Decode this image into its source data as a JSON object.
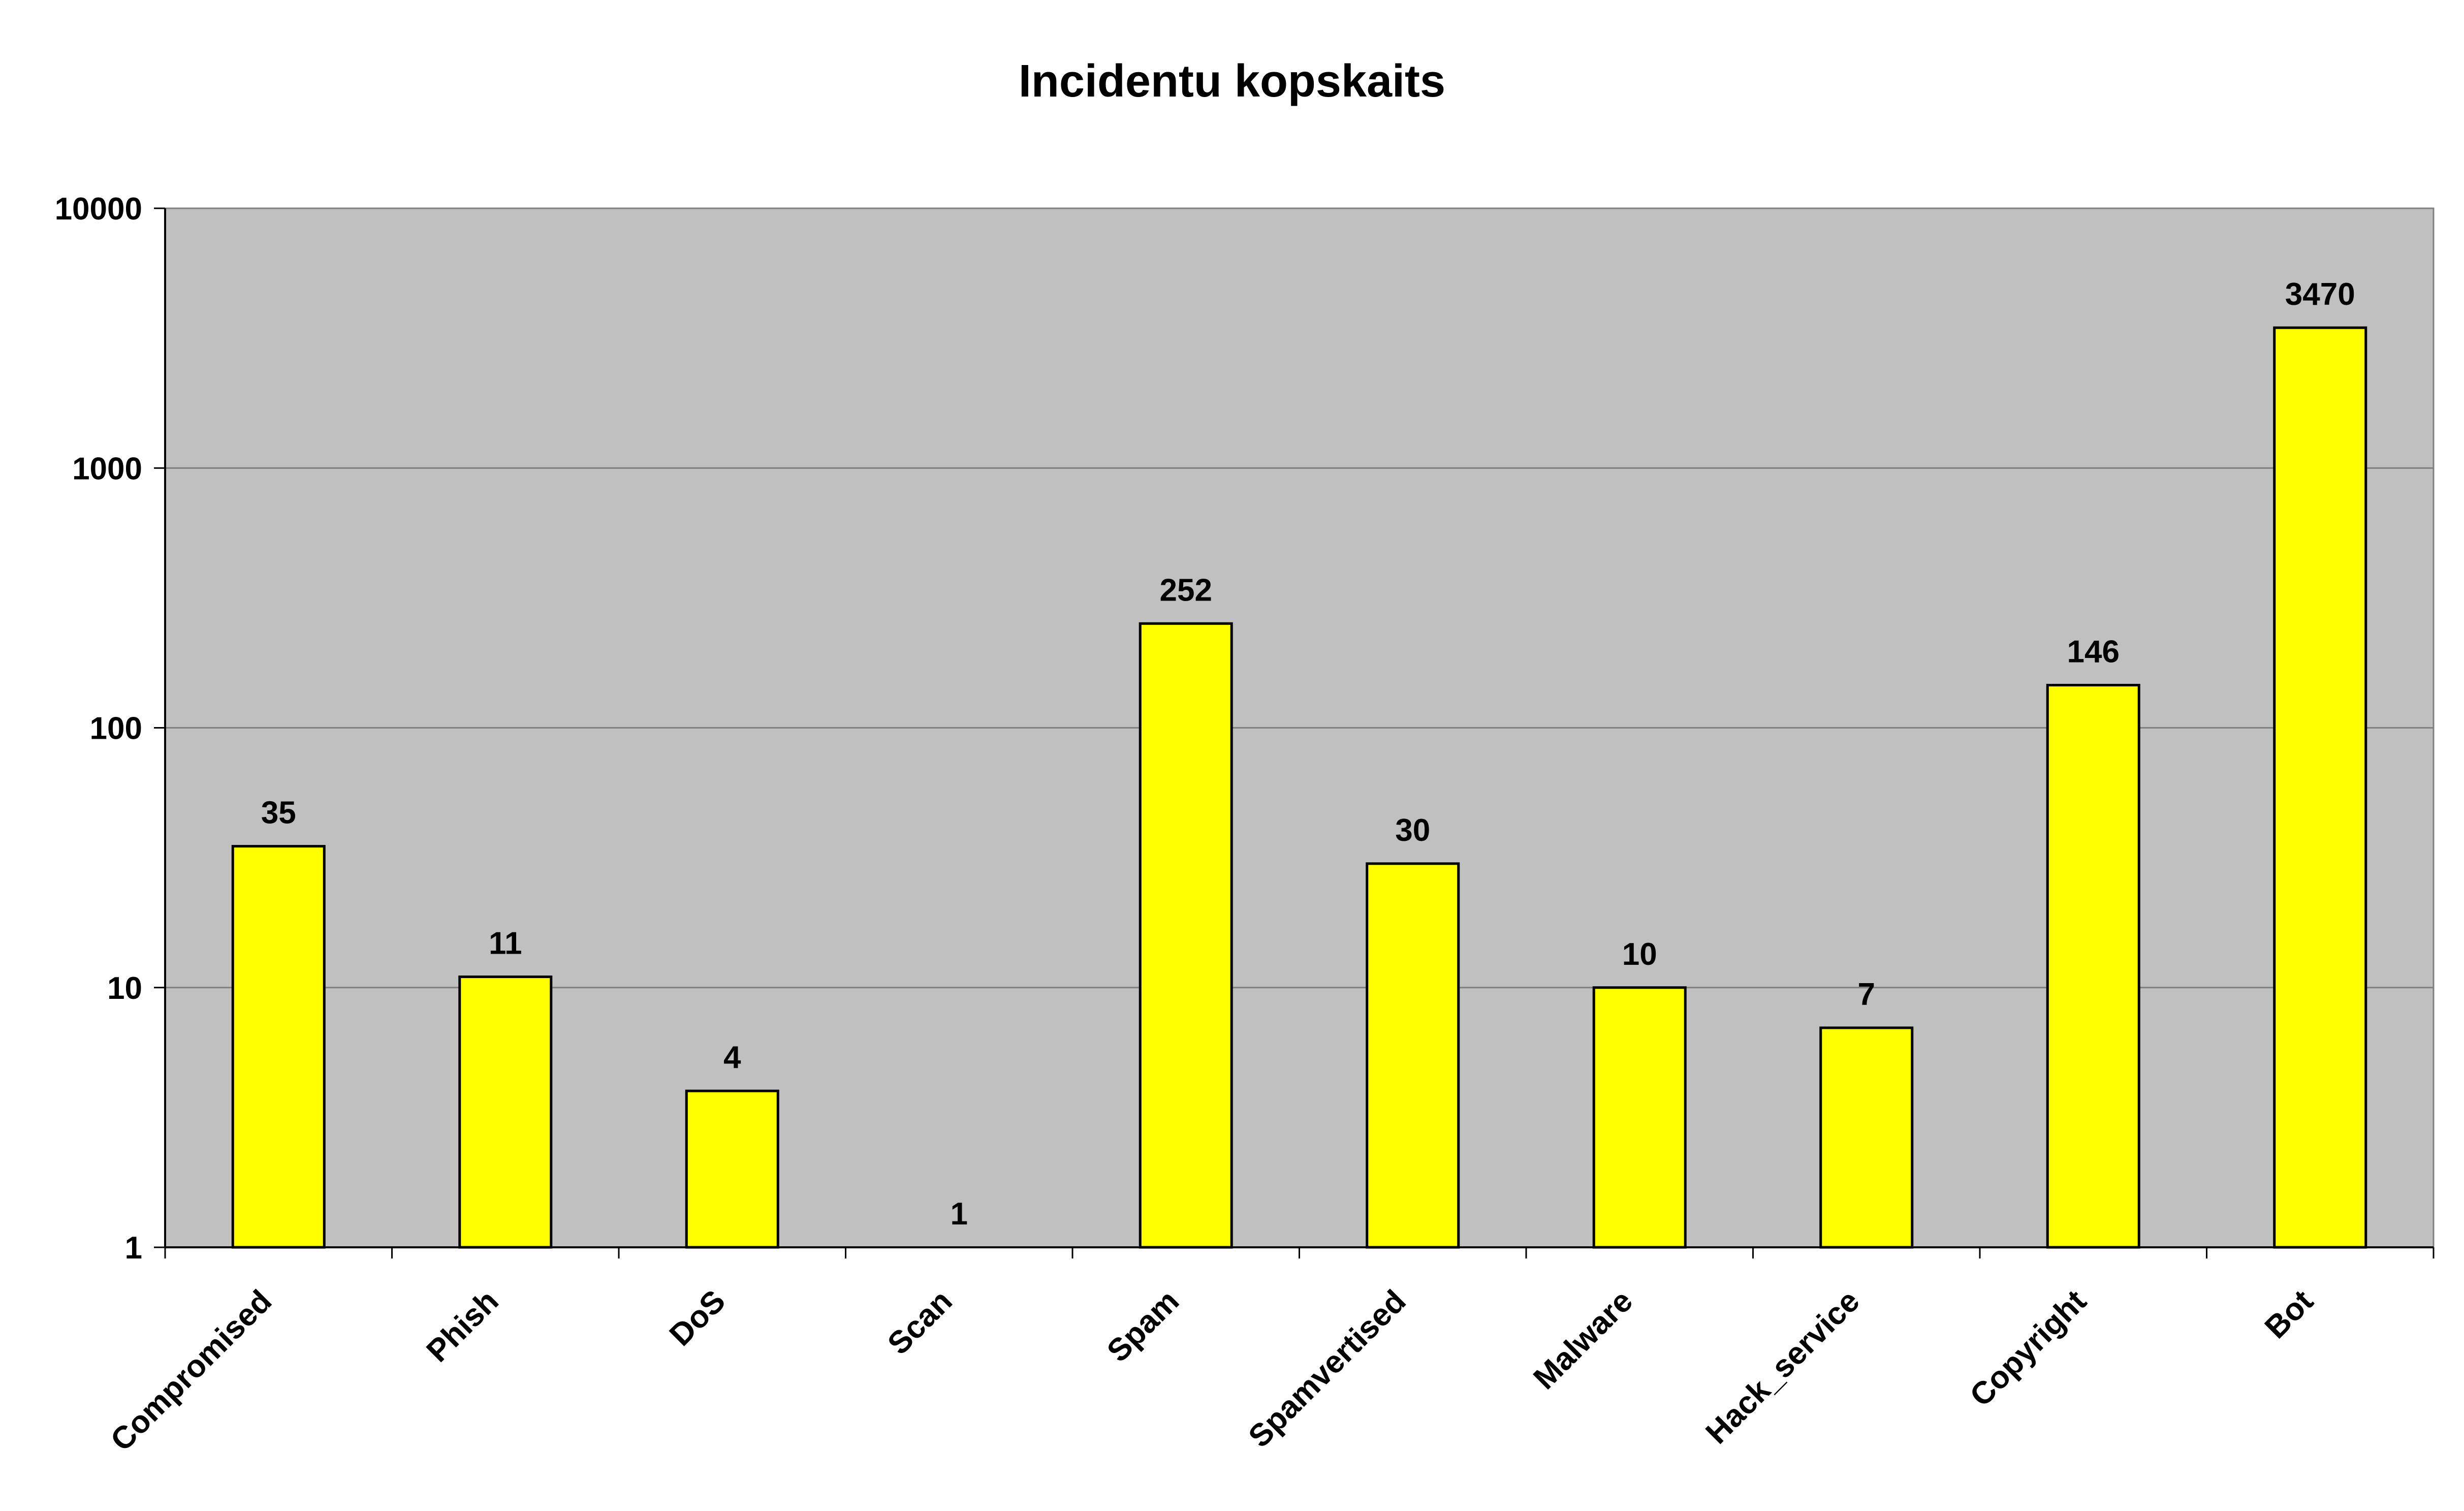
{
  "chart_data": {
    "type": "bar",
    "title": "Incidentu kopskaits",
    "xlabel": "",
    "ylabel": "",
    "y_scale": "log",
    "ylim": [
      1,
      10000
    ],
    "y_ticks": [
      1,
      10,
      100,
      1000,
      10000
    ],
    "y_tick_labels": [
      "1",
      "10",
      "100",
      "1000",
      "10000"
    ],
    "grid": true,
    "legend": "none",
    "categories": [
      "Compromised",
      "Phish",
      "DoS",
      "Scan",
      "Spam",
      "Spamvertised",
      "Malware",
      "Hack_service",
      "Copyright",
      "Bot"
    ],
    "values": [
      35,
      11,
      4,
      1,
      252,
      30,
      10,
      7,
      146,
      3470
    ],
    "data_labels": [
      "35",
      "11",
      "4",
      "1",
      "252",
      "30",
      "10",
      "7",
      "146",
      "3470"
    ],
    "colors": {
      "bar_fill": "#ffff00",
      "bar_stroke": "#000000",
      "plot_background": "#c0c0c0",
      "gridline": "#808080",
      "axis": "#000000",
      "page_background": "#ffffff"
    }
  }
}
